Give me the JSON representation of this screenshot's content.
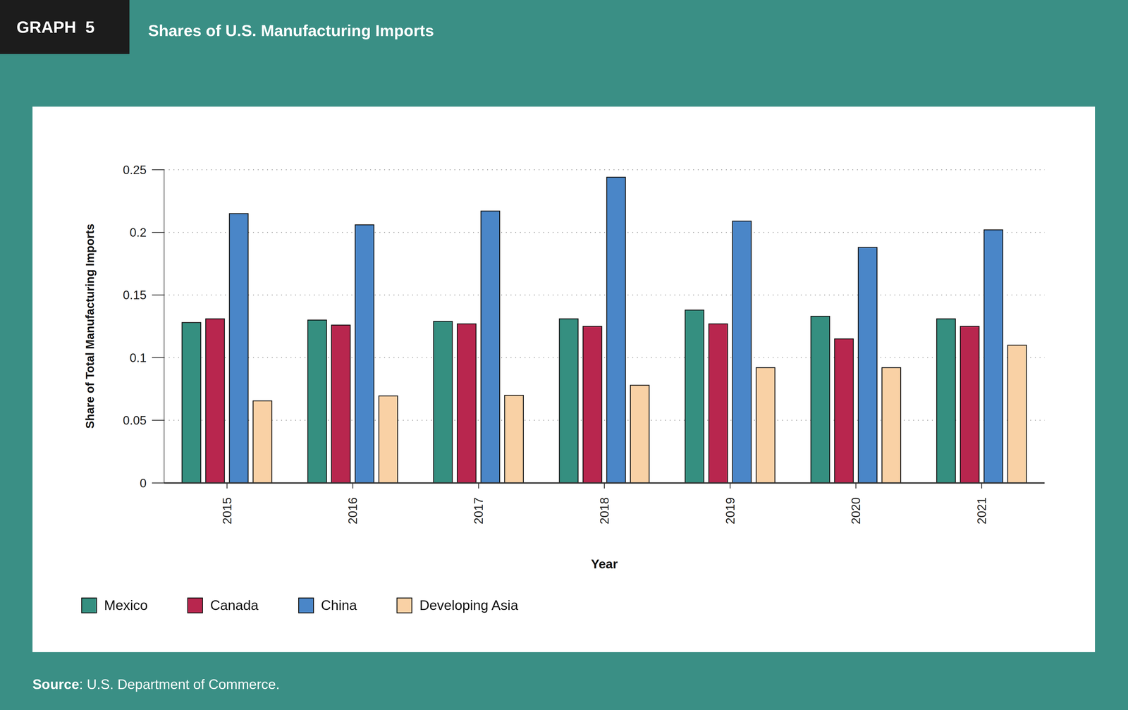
{
  "figure_label": "GRAPH  5",
  "source": "Source: U.S. Department of Commerce.",
  "chart_data": {
    "type": "bar",
    "title": "Shares of U.S. Manufacturing Imports",
    "x_label": "Year",
    "y_label": "Share of Total Manufacturing Imports",
    "categories": [
      "2015",
      "2016",
      "2017",
      "2018",
      "2019",
      "2020",
      "2021"
    ],
    "series": [
      {
        "name": "Mexico",
        "color": "#358f80",
        "values": [
          0.128,
          0.13,
          0.129,
          0.131,
          0.138,
          0.133,
          0.131
        ]
      },
      {
        "name": "Canada",
        "color": "#b8264e",
        "values": [
          0.131,
          0.126,
          0.127,
          0.125,
          0.127,
          0.115,
          0.125
        ]
      },
      {
        "name": "China",
        "color": "#4a86c8",
        "values": [
          0.215,
          0.206,
          0.217,
          0.244,
          0.209,
          0.188,
          0.202
        ]
      },
      {
        "name": "Developing Asia",
        "color": "#f9d1a5",
        "values": [
          0.0655,
          0.0695,
          0.07,
          0.078,
          0.092,
          0.092,
          0.11
        ]
      }
    ],
    "ylim": [
      0,
      0.25
    ],
    "yticks": [
      0,
      0.05,
      0.1,
      0.15,
      0.2,
      0.25
    ],
    "grid": true,
    "legend": "bottom-left"
  }
}
